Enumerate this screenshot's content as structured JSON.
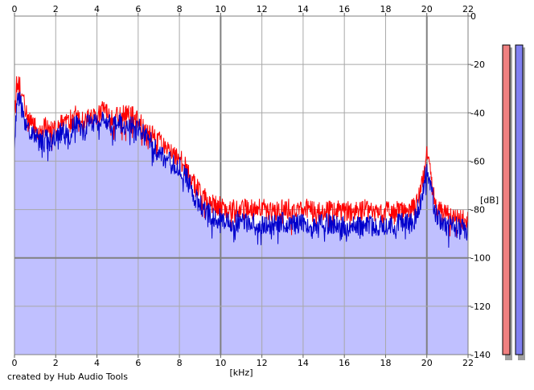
{
  "credit": "created by Hub Audio Tools",
  "chart_data": {
    "type": "line",
    "xlabel": "[kHz]",
    "ylabel": "[dB]",
    "xlim": [
      0,
      22
    ],
    "ylim": [
      -140,
      0
    ],
    "x_ticks": [
      0,
      2,
      4,
      6,
      8,
      10,
      12,
      14,
      16,
      18,
      20,
      22
    ],
    "y_ticks": [
      0,
      -20,
      -40,
      -60,
      -80,
      -100,
      -120,
      -140
    ],
    "y_tick_labels": [
      "0",
      "-20",
      "-40",
      "-60",
      "-80",
      "-100",
      "-120",
      "-140"
    ],
    "x_axes": "top-and-bottom",
    "y_axis": "right",
    "grid": true,
    "fill_color": "#c0c0ff",
    "series": [
      {
        "color": "#ff0000",
        "x": [
          0,
          0.1,
          0.2,
          0.3,
          0.4,
          0.5,
          0.7,
          1.0,
          1.2,
          1.5,
          1.8,
          2.0,
          2.3,
          2.6,
          3.0,
          3.3,
          3.6,
          4.0,
          4.3,
          4.6,
          5.0,
          5.3,
          5.6,
          6.0,
          6.3,
          6.6,
          7.0,
          7.3,
          7.6,
          8.0,
          8.3,
          8.6,
          8.9,
          9.2,
          9.5,
          10.0,
          10.5,
          11.0,
          11.5,
          12.0,
          12.5,
          13.0,
          13.5,
          14.0,
          14.5,
          15.0,
          15.5,
          16.0,
          16.5,
          17.0,
          17.5,
          18.0,
          18.5,
          19.0,
          19.4,
          19.7,
          19.9,
          20.0,
          20.1,
          20.3,
          20.5,
          20.8,
          21.0,
          21.3,
          21.6,
          22.0
        ],
        "y": [
          -45,
          -28,
          -25,
          -30,
          -35,
          -38,
          -42,
          -46,
          -47,
          -46,
          -48,
          -46,
          -43,
          -44,
          -41,
          -43,
          -40,
          -41,
          -39,
          -42,
          -42,
          -40,
          -41,
          -43,
          -47,
          -49,
          -52,
          -55,
          -57,
          -59,
          -62,
          -68,
          -72,
          -75,
          -78,
          -79,
          -80,
          -80,
          -80,
          -79,
          -81,
          -80,
          -80,
          -79,
          -81,
          -80,
          -80,
          -81,
          -81,
          -80,
          -82,
          -81,
          -81,
          -80,
          -79,
          -72,
          -63,
          -58,
          -62,
          -72,
          -80,
          -82,
          -82,
          -83,
          -84,
          -84
        ]
      },
      {
        "color": "#0000cc",
        "x": [
          0,
          0.1,
          0.2,
          0.3,
          0.4,
          0.5,
          0.7,
          1.0,
          1.2,
          1.5,
          1.8,
          2.0,
          2.3,
          2.6,
          3.0,
          3.3,
          3.6,
          4.0,
          4.3,
          4.6,
          5.0,
          5.3,
          5.6,
          6.0,
          6.3,
          6.6,
          7.0,
          7.3,
          7.6,
          8.0,
          8.3,
          8.6,
          8.9,
          9.2,
          9.5,
          10.0,
          10.5,
          11.0,
          11.5,
          12.0,
          12.5,
          13.0,
          13.5,
          14.0,
          14.5,
          15.0,
          15.5,
          16.0,
          16.5,
          17.0,
          17.5,
          18.0,
          18.5,
          19.0,
          19.4,
          19.7,
          19.9,
          20.0,
          20.1,
          20.3,
          20.5,
          20.8,
          21.0,
          21.3,
          21.6,
          22.0
        ],
        "y": [
          -56,
          -38,
          -32,
          -36,
          -40,
          -44,
          -47,
          -50,
          -52,
          -51,
          -52,
          -50,
          -48,
          -49,
          -45,
          -48,
          -44,
          -45,
          -43,
          -45,
          -44,
          -45,
          -45,
          -46,
          -49,
          -52,
          -56,
          -59,
          -61,
          -62,
          -66,
          -72,
          -77,
          -80,
          -82,
          -84,
          -85,
          -85,
          -86,
          -86,
          -86,
          -85,
          -86,
          -86,
          -87,
          -86,
          -86,
          -87,
          -87,
          -86,
          -87,
          -86,
          -86,
          -86,
          -85,
          -76,
          -66,
          -62,
          -66,
          -76,
          -84,
          -86,
          -87,
          -87,
          -88,
          -89
        ]
      }
    ],
    "level_meters": [
      {
        "color": "#f08080",
        "level_db": 0
      },
      {
        "color": "#8080f0",
        "level_db": 0
      }
    ]
  }
}
